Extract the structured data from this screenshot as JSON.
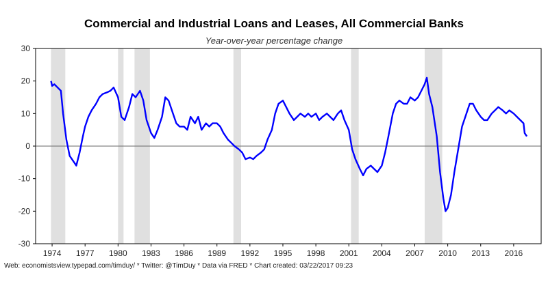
{
  "chart_data": {
    "type": "line",
    "title": "Commercial and Industrial Loans and Leases, All Commercial Banks",
    "subtitle": "Year-over-year percentage change",
    "xlabel": "",
    "ylabel": "",
    "xlim": [
      1972.5,
      2018.5
    ],
    "ylim": [
      -30,
      30
    ],
    "x_ticks": [
      1974,
      1977,
      1980,
      1983,
      1986,
      1989,
      1992,
      1995,
      1998,
      2001,
      2004,
      2007,
      2010,
      2013,
      2016
    ],
    "y_ticks": [
      -30,
      -20,
      -10,
      0,
      10,
      20,
      30
    ],
    "grid": false,
    "legend": "none",
    "line_color": "#0000ff",
    "recession_color": "#e0e0e0",
    "recessions": [
      [
        1973.9,
        1975.2
      ],
      [
        1980.0,
        1980.5
      ],
      [
        1981.5,
        1982.9
      ],
      [
        1990.5,
        1991.2
      ],
      [
        2001.2,
        2001.9
      ],
      [
        2007.9,
        2009.5
      ]
    ],
    "series": [
      {
        "x": [
          1973.9,
          1974.0,
          1974.2,
          1974.5,
          1974.8,
          1975.0,
          1975.3,
          1975.6,
          1976.0,
          1976.2,
          1976.5,
          1976.8,
          1977.0,
          1977.3,
          1977.6,
          1978.0,
          1978.3,
          1978.6,
          1979.0,
          1979.3,
          1979.6,
          1980.0,
          1980.3,
          1980.6,
          1981.0,
          1981.3,
          1981.6,
          1982.0,
          1982.3,
          1982.6,
          1983.0,
          1983.3,
          1983.6,
          1984.0,
          1984.3,
          1984.6,
          1985.0,
          1985.3,
          1985.6,
          1986.0,
          1986.3,
          1986.6,
          1987.0,
          1987.3,
          1987.6,
          1988.0,
          1988.3,
          1988.6,
          1989.0,
          1989.3,
          1989.6,
          1990.0,
          1990.3,
          1990.6,
          1991.0,
          1991.3,
          1991.6,
          1992.0,
          1992.3,
          1992.6,
          1993.0,
          1993.3,
          1993.6,
          1994.0,
          1994.3,
          1994.6,
          1995.0,
          1995.3,
          1995.6,
          1996.0,
          1996.3,
          1996.6,
          1997.0,
          1997.3,
          1997.6,
          1998.0,
          1998.3,
          1998.6,
          1999.0,
          1999.3,
          1999.6,
          2000.0,
          2000.3,
          2000.6,
          2001.0,
          2001.3,
          2001.6,
          2002.0,
          2002.3,
          2002.6,
          2003.0,
          2003.3,
          2003.6,
          2004.0,
          2004.3,
          2004.6,
          2005.0,
          2005.3,
          2005.6,
          2006.0,
          2006.3,
          2006.6,
          2007.0,
          2007.3,
          2007.6,
          2007.9,
          2008.1,
          2008.3,
          2008.6,
          2009.0,
          2009.3,
          2009.6,
          2009.8,
          2010.0,
          2010.3,
          2010.6,
          2011.0,
          2011.3,
          2011.6,
          2012.0,
          2012.3,
          2012.6,
          2013.0,
          2013.3,
          2013.6,
          2014.0,
          2014.3,
          2014.6,
          2015.0,
          2015.3,
          2015.6,
          2016.0,
          2016.3,
          2016.6,
          2016.9,
          2017.0,
          2017.2
        ],
        "values": [
          20,
          18.5,
          19,
          18,
          17,
          10,
          2,
          -3,
          -5,
          -6,
          -2,
          3,
          6,
          9,
          11,
          13,
          15,
          16,
          16.5,
          17,
          18,
          15,
          9,
          8,
          12,
          16,
          15,
          17,
          14,
          8,
          4,
          2.5,
          5,
          9,
          15,
          14,
          10,
          7,
          6,
          6,
          5,
          9,
          7,
          9,
          5,
          7,
          6,
          7,
          7,
          6,
          4,
          2,
          1,
          0,
          -1,
          -2,
          -4,
          -3.5,
          -4,
          -3,
          -2,
          -1,
          2,
          5,
          10,
          13,
          14,
          12,
          10,
          8,
          9,
          10,
          9,
          10,
          9,
          10,
          8,
          9,
          10,
          9,
          8,
          10,
          11,
          8,
          5,
          -1,
          -4,
          -7,
          -9,
          -7,
          -6,
          -7,
          -8,
          -6,
          -2,
          3,
          10,
          13,
          14,
          13,
          13,
          15,
          14,
          15,
          17,
          19,
          21,
          16,
          12,
          3,
          -8,
          -16,
          -20,
          -19,
          -15,
          -8,
          0,
          6,
          9,
          13,
          13,
          11,
          9,
          8,
          8,
          10,
          11,
          12,
          11,
          10,
          11,
          10,
          9,
          8,
          7,
          4,
          3
        ]
      }
    ]
  },
  "footer": "Web: economistsview.typepad.com/timduy/ * Twitter: @TimDuy * Data via FRED * Chart created: 03/22/2017 09:23"
}
